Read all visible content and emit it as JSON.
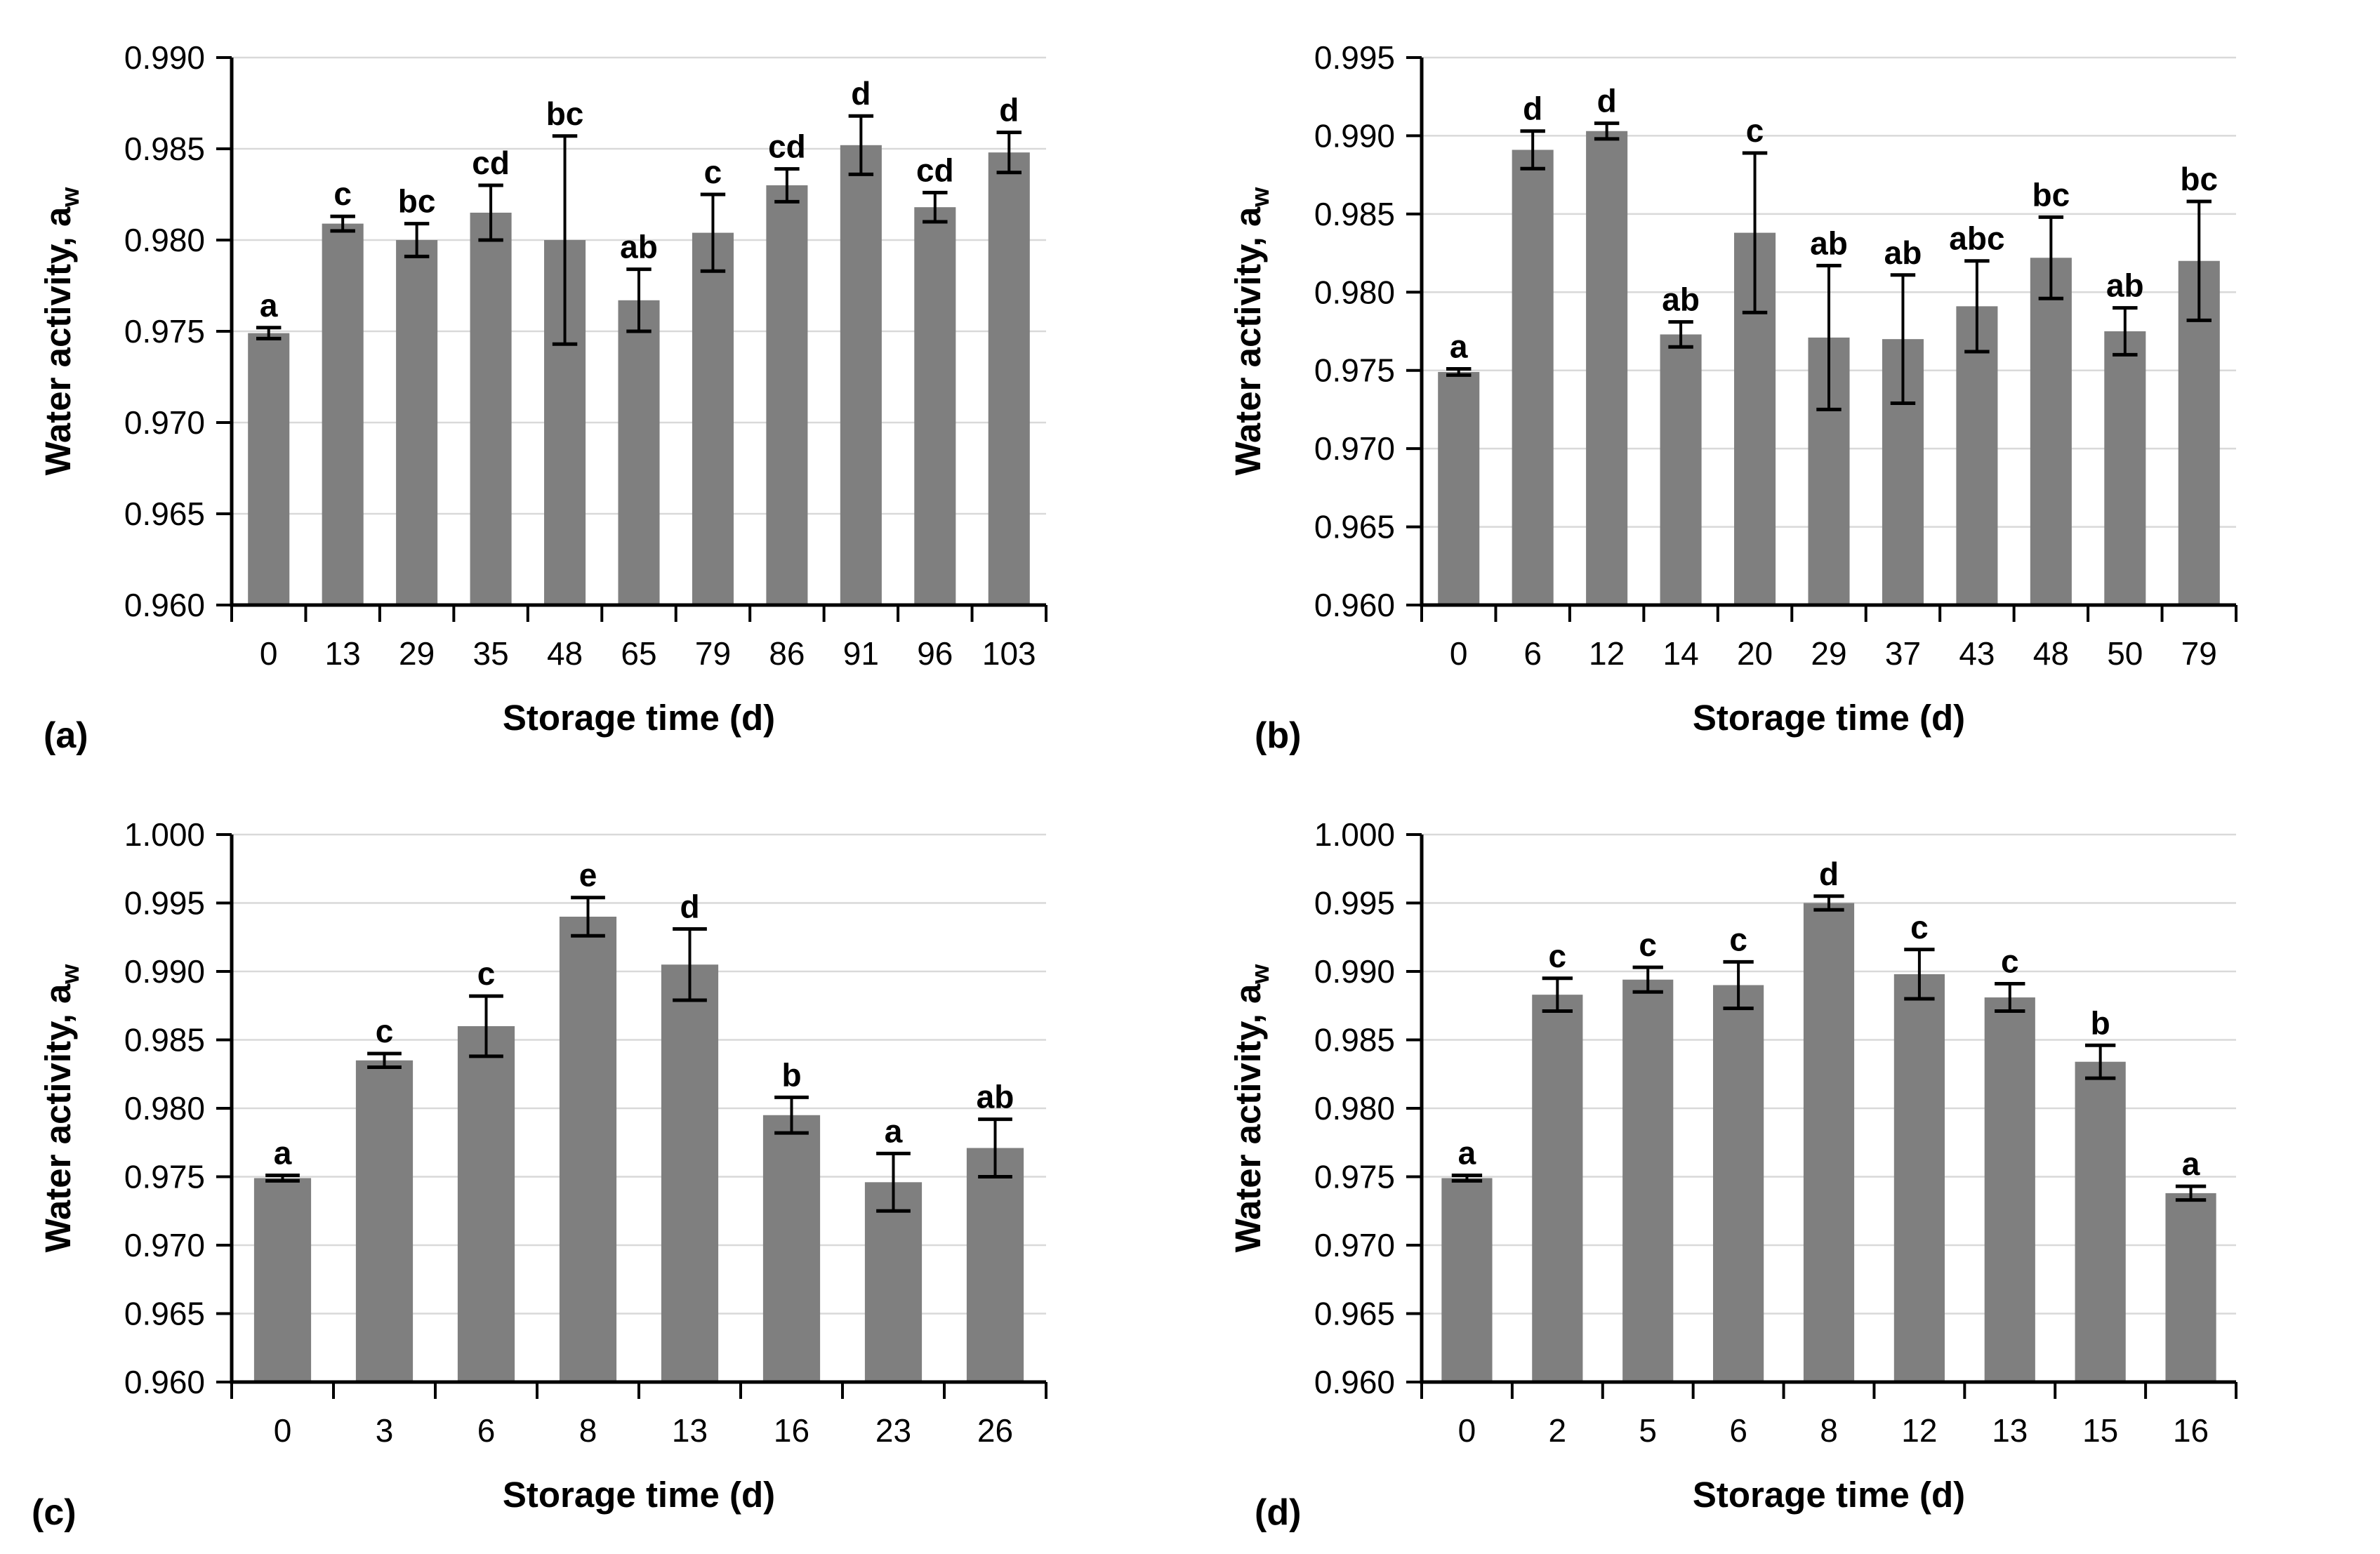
{
  "style": {
    "background": "#ffffff",
    "bar_color": "#7f7f7f",
    "grid_color": "#d9d9d9",
    "axis_color": "#000000",
    "error_color": "#000000",
    "text_color": "#000000"
  },
  "chart_data": [
    {
      "type": "bar",
      "panel_label": "(a)",
      "xlabel": "Storage time (d)",
      "ylabel": "Water activity, a",
      "ylabel_sub": "w",
      "categories": [
        "0",
        "13",
        "29",
        "35",
        "48",
        "65",
        "79",
        "86",
        "91",
        "96",
        "103"
      ],
      "values": [
        0.9749,
        0.9809,
        0.98,
        0.9815,
        0.98,
        0.9767,
        0.9804,
        0.983,
        0.9852,
        0.9818,
        0.9848
      ],
      "errors": [
        0.0003,
        0.0004,
        0.0009,
        0.0015,
        0.0057,
        0.0017,
        0.0021,
        0.0009,
        0.0016,
        0.0008,
        0.0011
      ],
      "letters": [
        "a",
        "c",
        "bc",
        "cd",
        "bc",
        "ab",
        "c",
        "cd",
        "d",
        "cd",
        "d"
      ],
      "yticks": [
        "0.990",
        "0.985",
        "0.980",
        "0.975",
        "0.970",
        "0.965",
        "0.960"
      ],
      "ylim": [
        0.96,
        0.99
      ],
      "grid": true,
      "legend": false
    },
    {
      "type": "bar",
      "panel_label": "(b)",
      "xlabel": "Storage time (d)",
      "ylabel": "Water activity, a",
      "ylabel_sub": "w",
      "categories": [
        "0",
        "6",
        "12",
        "14",
        "20",
        "29",
        "37",
        "43",
        "48",
        "50",
        "79"
      ],
      "values": [
        0.9749,
        0.9891,
        0.9903,
        0.9773,
        0.9838,
        0.9771,
        0.977,
        0.9791,
        0.9822,
        0.9775,
        0.982
      ],
      "errors": [
        0.0002,
        0.0012,
        0.0005,
        0.0008,
        0.0051,
        0.0046,
        0.0041,
        0.0029,
        0.0026,
        0.0015,
        0.0038
      ],
      "letters": [
        "a",
        "d",
        "d",
        "ab",
        "c",
        "ab",
        "ab",
        "abc",
        "bc",
        "ab",
        "bc"
      ],
      "yticks": [
        "0.995",
        "0.990",
        "0.985",
        "0.980",
        "0.975",
        "0.970",
        "0.965",
        "0.960"
      ],
      "ylim": [
        0.96,
        0.995
      ],
      "grid": true,
      "legend": false
    },
    {
      "type": "bar",
      "panel_label": "(c)",
      "xlabel": "Storage time (d)",
      "ylabel": "Water activity, a",
      "ylabel_sub": "w",
      "categories": [
        "0",
        "3",
        "6",
        "8",
        "13",
        "16",
        "23",
        "26"
      ],
      "values": [
        0.9749,
        0.9835,
        0.986,
        0.994,
        0.9905,
        0.9795,
        0.9746,
        0.9771
      ],
      "errors": [
        0.0002,
        0.0005,
        0.0022,
        0.0014,
        0.0026,
        0.0013,
        0.0021,
        0.0021
      ],
      "letters": [
        "a",
        "c",
        "c",
        "e",
        "d",
        "b",
        "a",
        "ab"
      ],
      "yticks": [
        "1.000",
        "0.995",
        "0.990",
        "0.985",
        "0.980",
        "0.975",
        "0.970",
        "0.965",
        "0.960"
      ],
      "ylim": [
        0.96,
        1.0
      ],
      "grid": true,
      "legend": false
    },
    {
      "type": "bar",
      "panel_label": "(d)",
      "xlabel": "Storage time (d)",
      "ylabel": "Water activity, a",
      "ylabel_sub": "w",
      "categories": [
        "0",
        "2",
        "5",
        "6",
        "8",
        "12",
        "13",
        "15",
        "16"
      ],
      "values": [
        0.9749,
        0.9883,
        0.9894,
        0.989,
        0.995,
        0.9898,
        0.9881,
        0.9834,
        0.9738
      ],
      "errors": [
        0.0002,
        0.0012,
        0.0009,
        0.0017,
        0.0005,
        0.0018,
        0.001,
        0.0012,
        0.0005
      ],
      "letters": [
        "a",
        "c",
        "c",
        "c",
        "d",
        "c",
        "c",
        "b",
        "a"
      ],
      "yticks": [
        "1.000",
        "0.995",
        "0.990",
        "0.985",
        "0.980",
        "0.975",
        "0.970",
        "0.965",
        "0.960"
      ],
      "ylim": [
        0.96,
        1.0
      ],
      "grid": true,
      "legend": false
    }
  ]
}
